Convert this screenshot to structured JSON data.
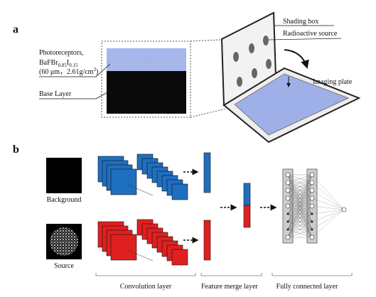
{
  "panel_a": {
    "label": "a",
    "photoreceptors": {
      "line1": "Photoreceptors,",
      "formula": [
        "BaFBr",
        "0.85",
        "I",
        "0.15"
      ],
      "spec": [
        "(60 μm，2.61g/cm",
        "3",
        ")"
      ]
    },
    "base_layer": "Base Layer",
    "shading_box": "Shading box",
    "radioactive_source": "Radioactive source",
    "imaging_plate": "Imaging plate"
  },
  "panel_b": {
    "label": "b",
    "inputs": [
      "Background",
      "Source"
    ],
    "stages": [
      "Convolution layer",
      "Feature merge layer",
      "Fully connected layer"
    ]
  }
}
